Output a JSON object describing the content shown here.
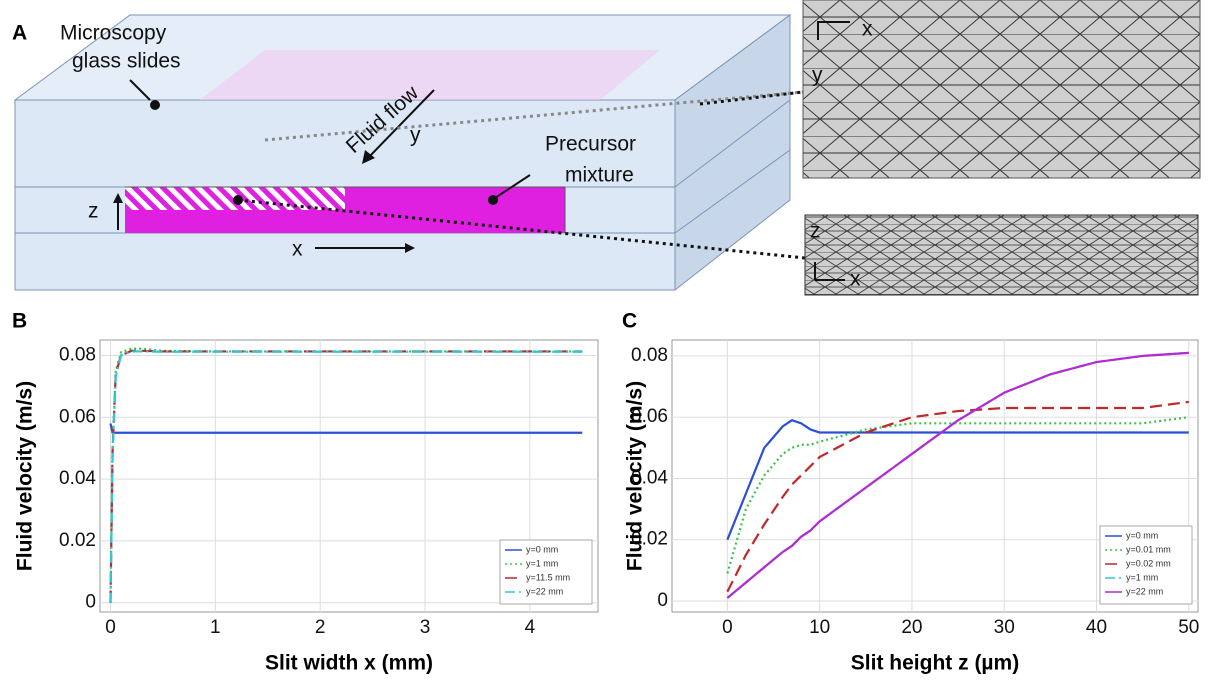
{
  "diagram": {
    "panel_label": "A",
    "slides_label": [
      "Microscopy",
      "glass slides"
    ],
    "flow_label": "Fluid flow",
    "y_axis": "y",
    "precursor_label": [
      "Precursor",
      "mixture"
    ],
    "z_axis": "z",
    "x_axis": "x",
    "mesh_top_axes": [
      "x",
      "y"
    ],
    "mesh_bottom_axes": [
      "z",
      "x"
    ]
  },
  "chart_data": [
    {
      "type": "line",
      "panel_label": "B",
      "xlabel": "Slit width x (mm)",
      "ylabel": "Fluid velocity (m/s)",
      "x": [
        0,
        0.02,
        0.05,
        0.1,
        0.2,
        0.3,
        0.5,
        1,
        2,
        3,
        4,
        4.5
      ],
      "series": [
        {
          "name": "y=0 mm",
          "color": "#2b50d8",
          "style": "solid",
          "values": [
            0.058,
            0.055,
            0.055,
            0.055,
            0.055,
            0.055,
            0.055,
            0.055,
            0.055,
            0.055,
            0.055,
            0.055
          ]
        },
        {
          "name": "y=1 mm",
          "color": "#3cc24a",
          "style": "dotted",
          "values": [
            0,
            0.05,
            0.075,
            0.081,
            0.0822,
            0.0822,
            0.0815,
            0.0813,
            0.0813,
            0.0813,
            0.0813,
            0.0813
          ]
        },
        {
          "name": "y=11.5 mm",
          "color": "#c0282a",
          "style": "dashed",
          "values": [
            0,
            0.049,
            0.074,
            0.08,
            0.0815,
            0.0815,
            0.0813,
            0.0813,
            0.0813,
            0.0813,
            0.0813,
            0.0813
          ]
        },
        {
          "name": "y=22 mm",
          "color": "#2ac8d8",
          "style": "dashdot",
          "values": [
            0,
            0.048,
            0.073,
            0.08,
            0.0813,
            0.0813,
            0.0812,
            0.0812,
            0.0812,
            0.0812,
            0.0812,
            0.0812
          ]
        }
      ],
      "xlim": [
        -0.1,
        4.65
      ],
      "ylim": [
        -0.003,
        0.085
      ],
      "xticks": [
        0,
        1,
        2,
        3,
        4
      ],
      "yticks": [
        0,
        0.02,
        0.04,
        0.06,
        0.08
      ],
      "grid": true,
      "legend": "lower right"
    },
    {
      "type": "line",
      "panel_label": "C",
      "xlabel": "Slit height z (µm)",
      "ylabel": "Fluid velocity (m/s)",
      "x": [
        0,
        2,
        4,
        6,
        7,
        8,
        9,
        10,
        15,
        20,
        25,
        30,
        35,
        40,
        45,
        50
      ],
      "series": [
        {
          "name": "y=0 mm",
          "color": "#2b50d8",
          "style": "solid",
          "values": [
            0.02,
            0.035,
            0.05,
            0.057,
            0.059,
            0.058,
            0.056,
            0.055,
            0.055,
            0.055,
            0.055,
            0.055,
            0.055,
            0.055,
            0.055,
            0.055
          ]
        },
        {
          "name": "y=0.01 mm",
          "color": "#3cc24a",
          "style": "dotted",
          "values": [
            0.009,
            0.03,
            0.041,
            0.048,
            0.05,
            0.051,
            0.051,
            0.052,
            0.056,
            0.058,
            0.058,
            0.058,
            0.058,
            0.058,
            0.058,
            0.06
          ]
        },
        {
          "name": "y=0.02 mm",
          "color": "#c0282a",
          "style": "dashed",
          "values": [
            0.003,
            0.015,
            0.025,
            0.034,
            0.038,
            0.041,
            0.044,
            0.047,
            0.055,
            0.06,
            0.062,
            0.063,
            0.063,
            0.063,
            0.063,
            0.065
          ]
        },
        {
          "name": "y=1 mm",
          "color": "#2ac8d8",
          "style": "dashdot",
          "values": [
            0.001,
            0.006,
            0.011,
            0.016,
            0.018,
            0.021,
            0.023,
            0.026,
            0.037,
            0.048,
            0.059,
            0.068,
            0.074,
            0.078,
            0.08,
            0.081
          ]
        },
        {
          "name": "y=22 mm",
          "color": "#b42ad0",
          "style": "solid",
          "values": [
            0.001,
            0.006,
            0.011,
            0.016,
            0.018,
            0.021,
            0.023,
            0.026,
            0.037,
            0.048,
            0.059,
            0.068,
            0.074,
            0.078,
            0.08,
            0.081
          ]
        }
      ],
      "xlim": [
        -6,
        51
      ],
      "ylim": [
        -0.0036,
        0.0852
      ],
      "xticks": [
        0,
        10,
        20,
        30,
        40,
        50
      ],
      "yticks": [
        0,
        0.02,
        0.04,
        0.06,
        0.08
      ],
      "grid": true,
      "legend": "lower right"
    }
  ]
}
